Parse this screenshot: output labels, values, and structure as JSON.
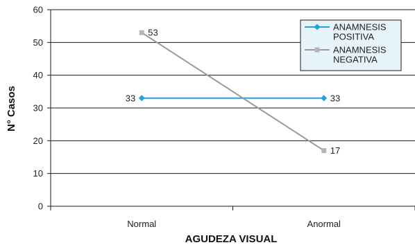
{
  "chart_data": {
    "type": "line",
    "categories": [
      "Normal",
      "Anormal"
    ],
    "series": [
      {
        "name": [
          "ANAMNESIS",
          "POSITIVA"
        ],
        "values": [
          33,
          33
        ],
        "color": "#1fa3e0",
        "marker": "diamond"
      },
      {
        "name": [
          "ANAMNESIS",
          "NEGATIVA"
        ],
        "values": [
          53,
          17
        ],
        "color": "#9a9a9a",
        "marker": "square"
      }
    ],
    "data_labels": [
      {
        "series": 0,
        "index": 0,
        "text": "33",
        "side": "left"
      },
      {
        "series": 0,
        "index": 1,
        "text": "33",
        "side": "right"
      },
      {
        "series": 1,
        "index": 0,
        "text": "53",
        "side": "right"
      },
      {
        "series": 1,
        "index": 1,
        "text": "17",
        "side": "right"
      }
    ],
    "xlabel": "AGUDEZA VISUAL",
    "ylabel": "N° Casos",
    "ylim": [
      0,
      60
    ],
    "yticks": [
      0,
      10,
      20,
      30,
      40,
      50,
      60
    ],
    "grid": true,
    "legend_position": "top-right",
    "legend_background": "#e6f3fb"
  }
}
